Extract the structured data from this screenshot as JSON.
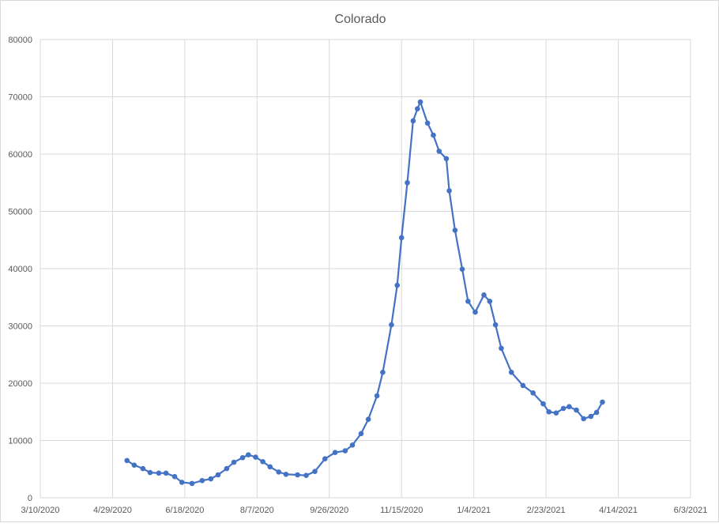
{
  "chart_data": {
    "type": "line",
    "title": "Colorado",
    "xlabel": "",
    "ylabel": "",
    "xlim": [
      "3/10/2020",
      "6/3/2021"
    ],
    "ylim": [
      0,
      80000
    ],
    "x_ticks": [
      "3/10/2020",
      "4/29/2020",
      "6/18/2020",
      "8/7/2020",
      "9/26/2020",
      "11/15/2020",
      "1/4/2021",
      "2/23/2021",
      "4/14/2021",
      "6/3/2021"
    ],
    "y_ticks": [
      0,
      10000,
      20000,
      30000,
      40000,
      50000,
      60000,
      70000,
      80000
    ],
    "grid": true,
    "markers": true,
    "legend": "none",
    "colors": {
      "series": "#4472C4",
      "grid": "#d9d9d9"
    },
    "series": [
      {
        "x": [
          "5/9/2020",
          "5/14/2020",
          "5/20/2020",
          "5/25/2020",
          "5/31/2020",
          "6/5/2020",
          "6/11/2020",
          "6/16/2020",
          "6/23/2020",
          "6/30/2020",
          "7/6/2020",
          "7/11/2020",
          "7/17/2020",
          "7/22/2020",
          "7/28/2020",
          "8/1/2020",
          "8/6/2020",
          "8/11/2020",
          "8/16/2020",
          "8/22/2020",
          "8/27/2020",
          "9/4/2020",
          "9/10/2020",
          "9/16/2020",
          "9/23/2020",
          "9/30/2020",
          "10/7/2020",
          "10/12/2020",
          "10/18/2020",
          "10/23/2020",
          "10/29/2020",
          "11/2/2020",
          "11/8/2020",
          "11/12/2020",
          "11/15/2020",
          "11/19/2020",
          "11/23/2020",
          "11/26/2020",
          "11/28/2020",
          "12/3/2020",
          "12/7/2020",
          "12/11/2020",
          "12/16/2020",
          "12/18/2020",
          "12/22/2020",
          "12/27/2020",
          "12/31/2020",
          "1/5/2021",
          "1/11/2021",
          "1/15/2021",
          "1/19/2021",
          "1/23/2021",
          "1/30/2021",
          "2/7/2021",
          "2/14/2021",
          "2/21/2021",
          "2/25/2021",
          "3/2/2021",
          "3/7/2021",
          "3/11/2021",
          "3/16/2021",
          "3/21/2021",
          "3/26/2021",
          "3/30/2021",
          "4/3/2021"
        ],
        "values": [
          6500,
          5700,
          5100,
          4400,
          4300,
          4300,
          3700,
          2700,
          2500,
          3000,
          3300,
          4000,
          5100,
          6200,
          7000,
          7500,
          7100,
          6300,
          5400,
          4500,
          4100,
          4000,
          3900,
          4600,
          6800,
          7900,
          8200,
          9200,
          11200,
          13700,
          17800,
          21900,
          30200,
          37100,
          45400,
          55000,
          65800,
          67900,
          69100,
          65400,
          63300,
          60500,
          59200,
          53600,
          46700,
          39900,
          34300,
          32400,
          35400,
          34300,
          30200,
          26100,
          21900,
          19600,
          18300,
          16400,
          15000,
          14800,
          15600,
          15900,
          15300,
          13800,
          14200,
          14900,
          16700
        ]
      }
    ]
  }
}
